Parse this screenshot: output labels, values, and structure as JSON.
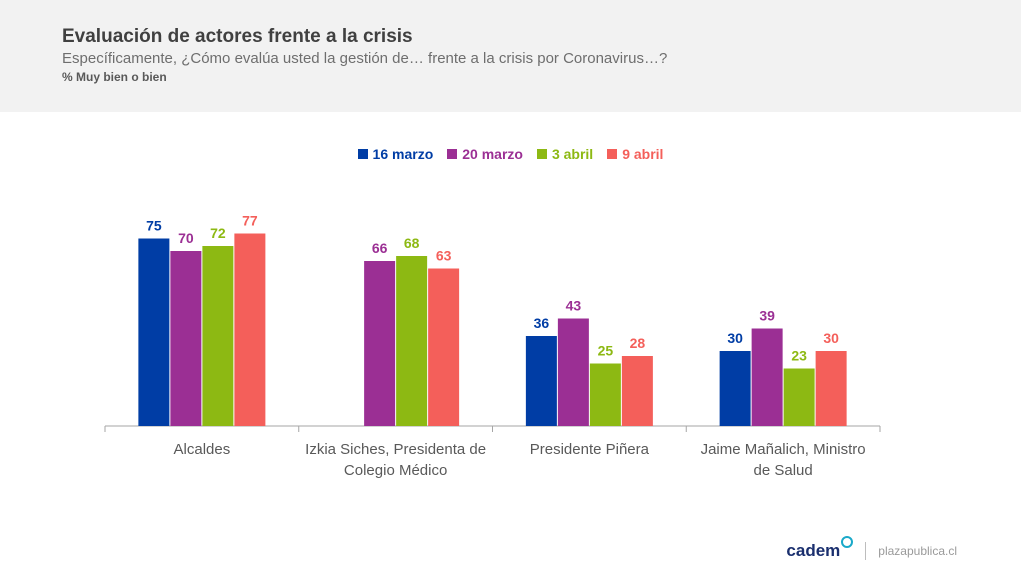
{
  "header": {
    "title": "Evaluación de actores frente a la crisis",
    "subtitle": "Específicamente, ¿Cómo evalúa usted la gestión de… frente a la crisis por Coronavirus…?",
    "note": "% Muy bien o bien"
  },
  "footer": {
    "logo_text": "cadem",
    "site": "plazapublica.cl"
  },
  "chart_data": {
    "type": "bar",
    "title": "",
    "xlabel": "",
    "ylabel": "",
    "ylim": [
      0,
      80
    ],
    "grid": false,
    "legend_position": "top-center",
    "categories": [
      [
        "Alcaldes"
      ],
      [
        "Izkia Siches, Presidenta de",
        "Colegio Médico"
      ],
      [
        "Presidente Piñera"
      ],
      [
        "Jaime Mañalich, Ministro",
        "de Salud"
      ]
    ],
    "series": [
      {
        "name": "16 marzo",
        "color": "#003da5",
        "values": [
          75,
          null,
          36,
          30
        ]
      },
      {
        "name": "20 marzo",
        "color": "#9b2f94",
        "values": [
          70,
          66,
          43,
          39
        ]
      },
      {
        "name": "3 abril",
        "color": "#8db913",
        "values": [
          72,
          68,
          25,
          23
        ]
      },
      {
        "name": "9 abril",
        "color": "#f45f5a",
        "values": [
          77,
          63,
          28,
          30
        ]
      }
    ]
  }
}
